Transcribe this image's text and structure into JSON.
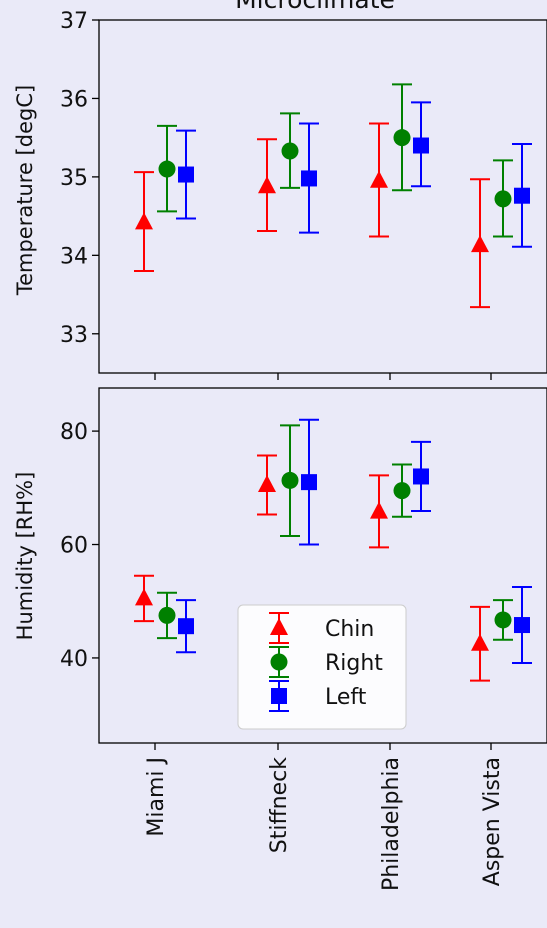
{
  "chart_data": [
    {
      "type": "scatter",
      "title": "Microclimate",
      "ylabel": "Temperature [degC]",
      "categories": [
        "Miami J",
        "Stiffneck",
        "Philadelphia",
        "Aspen Vista"
      ],
      "ylim": [
        32.5,
        37.0
      ],
      "yticks": [
        33,
        34,
        35,
        36,
        37
      ],
      "series": [
        {
          "name": "Chin",
          "color": "#ff0000",
          "marker": "triangle",
          "values": [
            34.42,
            34.88,
            34.95,
            34.13
          ],
          "err_low": [
            33.8,
            34.31,
            34.24,
            33.34
          ],
          "err_high": [
            35.06,
            35.48,
            35.68,
            34.97
          ]
        },
        {
          "name": "Right",
          "color": "#008000",
          "marker": "circle",
          "values": [
            35.1,
            35.33,
            35.5,
            34.72
          ],
          "err_low": [
            34.56,
            34.86,
            34.83,
            34.24
          ],
          "err_high": [
            35.65,
            35.81,
            36.18,
            35.21
          ]
        },
        {
          "name": "Left",
          "color": "#0000ff",
          "marker": "square",
          "values": [
            35.03,
            34.98,
            35.4,
            34.76
          ],
          "err_low": [
            34.47,
            34.29,
            34.88,
            34.11
          ],
          "err_high": [
            35.59,
            35.68,
            35.95,
            35.42
          ]
        }
      ]
    },
    {
      "type": "scatter",
      "ylabel": "Humidity [RH%]",
      "categories": [
        "Miami J",
        "Stiffneck",
        "Philadelphia",
        "Aspen Vista"
      ],
      "ylim": [
        25,
        87.6
      ],
      "yticks": [
        40,
        60,
        80
      ],
      "legend_position": "lower-center",
      "series": [
        {
          "name": "Chin",
          "color": "#ff0000",
          "marker": "triangle",
          "values": [
            50.5,
            70.5,
            65.8,
            42.5
          ],
          "err_low": [
            46.5,
            65.3,
            59.5,
            36.0
          ],
          "err_high": [
            54.5,
            75.7,
            72.2,
            49.0
          ]
        },
        {
          "name": "Right",
          "color": "#008000",
          "marker": "circle",
          "values": [
            47.5,
            71.3,
            69.5,
            46.7
          ],
          "err_low": [
            43.5,
            61.5,
            64.9,
            43.2
          ],
          "err_high": [
            51.5,
            81.0,
            74.1,
            50.2
          ]
        },
        {
          "name": "Left",
          "color": "#0000ff",
          "marker": "square",
          "values": [
            45.6,
            71.0,
            72.0,
            45.8
          ],
          "err_low": [
            41.0,
            60.0,
            65.9,
            39.1
          ],
          "err_high": [
            50.2,
            82.0,
            78.1,
            52.5
          ]
        }
      ]
    }
  ]
}
